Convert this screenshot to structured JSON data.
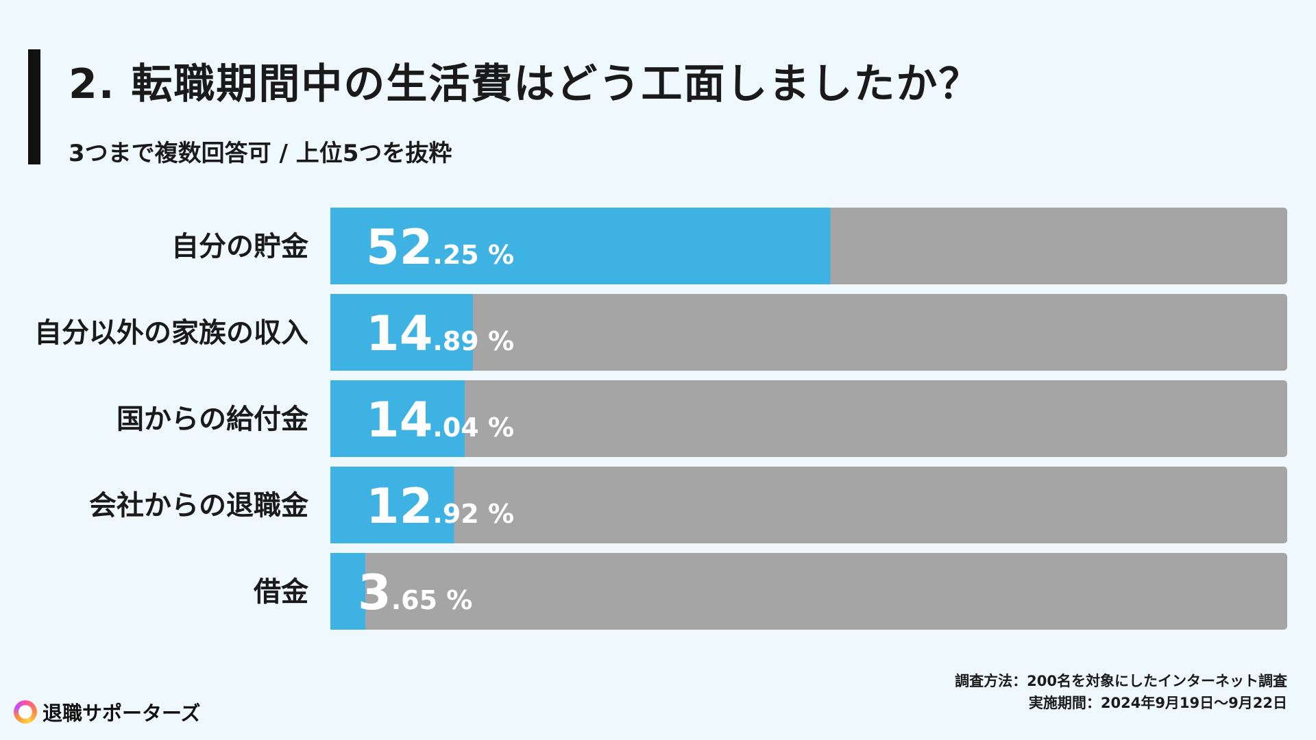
{
  "header": {
    "title": "2. 転職期間中の生活費はどう工面しましたか？",
    "subtitle": "3つまで複数回答可 / 上位5つを抜粋"
  },
  "chart_data": {
    "type": "bar",
    "orientation": "horizontal",
    "categories": [
      "自分の貯金",
      "自分以外の家族の収入",
      "国からの給付金",
      "会社からの退職金",
      "借金"
    ],
    "values": [
      52.25,
      14.89,
      14.04,
      12.92,
      3.65
    ],
    "value_labels": [
      {
        "int": "52",
        "dec": ".25 %"
      },
      {
        "int": "14",
        "dec": ".89 %"
      },
      {
        "int": "14",
        "dec": ".04 %"
      },
      {
        "int": "12",
        "dec": ".92 %"
      },
      {
        "int": "3",
        "dec": ".65 %"
      }
    ],
    "xlim": [
      0,
      100
    ],
    "unit": "%",
    "bar_color": "#3db2e3",
    "track_color": "#a5a5a5"
  },
  "footer": {
    "method": "調査方法：200名を対象にしたインターネット調査",
    "period": "実施期間：2024年9月19日〜9月22日"
  },
  "logo": {
    "icon": "ring-logo-icon",
    "text": "退職サポーターズ"
  }
}
